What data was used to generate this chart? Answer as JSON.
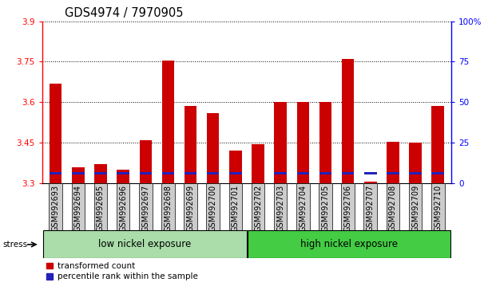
{
  "title": "GDS4974 / 7970905",
  "samples": [
    "GSM992693",
    "GSM992694",
    "GSM992695",
    "GSM992696",
    "GSM992697",
    "GSM992698",
    "GSM992699",
    "GSM992700",
    "GSM992701",
    "GSM992702",
    "GSM992703",
    "GSM992704",
    "GSM992705",
    "GSM992706",
    "GSM992707",
    "GSM992708",
    "GSM992709",
    "GSM992710"
  ],
  "red_values": [
    3.67,
    3.36,
    3.37,
    3.35,
    3.46,
    3.755,
    3.585,
    3.56,
    3.42,
    3.445,
    3.6,
    3.6,
    3.6,
    3.76,
    3.305,
    3.455,
    3.45,
    3.585
  ],
  "blue_bottom": [
    3.332,
    3.332,
    3.332,
    3.332,
    3.332,
    3.332,
    3.332,
    3.332,
    3.332,
    3.332,
    3.332,
    3.332,
    3.332,
    3.332,
    3.332,
    3.332,
    3.332,
    3.332
  ],
  "blue_height": [
    0.011,
    0.011,
    0.011,
    0.011,
    0.011,
    0.011,
    0.011,
    0.011,
    0.011,
    0.0,
    0.011,
    0.011,
    0.011,
    0.011,
    0.011,
    0.011,
    0.011,
    0.011
  ],
  "ymin": 3.3,
  "ymax": 3.9,
  "yticks": [
    3.3,
    3.45,
    3.6,
    3.75,
    3.9
  ],
  "right_yticks": [
    0,
    25,
    50,
    75,
    100
  ],
  "group1_label": "low nickel exposure",
  "group2_label": "high nickel exposure",
  "n_low": 9,
  "n_high": 9,
  "stress_label": "stress",
  "legend_red": "transformed count",
  "legend_blue": "percentile rank within the sample",
  "bar_color_red": "#cc0000",
  "bar_color_blue": "#2222bb",
  "bar_width": 0.55,
  "group1_color": "#aaddaa",
  "group2_color": "#44cc44",
  "xtick_bg_color": "#cccccc",
  "title_fontsize": 10.5,
  "tick_fontsize": 7.0,
  "label_fontsize": 8.5
}
